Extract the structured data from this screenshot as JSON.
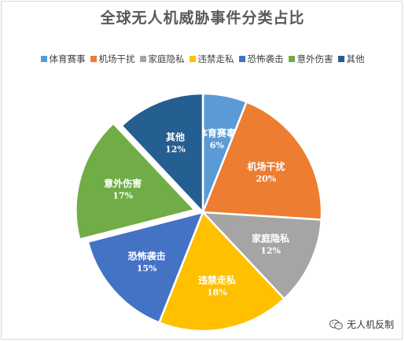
{
  "title": "全球无人机威胁事件分类占比",
  "watermark": {
    "text": "无人机反制"
  },
  "chart_data": {
    "type": "pie",
    "title": "全球无人机威胁事件分类占比",
    "legend_position": "top",
    "series": [
      {
        "name": "体育赛事",
        "value": 6,
        "label": "6%",
        "color": "#5B9BD5",
        "exploded": false
      },
      {
        "name": "机场干扰",
        "value": 20,
        "label": "20%",
        "color": "#ED7D31",
        "exploded": false
      },
      {
        "name": "家庭隐私",
        "value": 12,
        "label": "12%",
        "color": "#A5A5A5",
        "exploded": false
      },
      {
        "name": "违禁走私",
        "value": 18,
        "label": "18%",
        "color": "#FFC000",
        "exploded": false
      },
      {
        "name": "恐怖袭击",
        "value": 15,
        "label": "15%",
        "color": "#4472C4",
        "exploded": false
      },
      {
        "name": "意外伤害",
        "value": 17,
        "label": "17%",
        "color": "#70AD47",
        "exploded": true
      },
      {
        "name": "其他",
        "value": 12,
        "label": "12%",
        "color": "#255E91",
        "exploded": false
      }
    ]
  }
}
